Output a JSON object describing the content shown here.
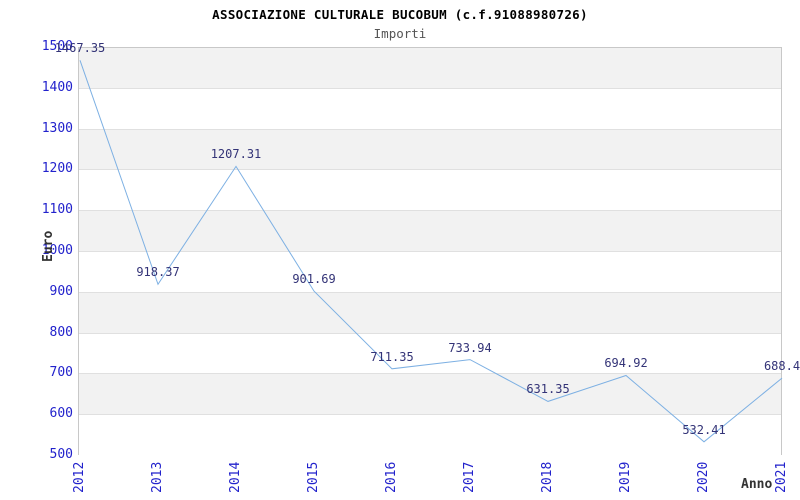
{
  "header": {
    "title": "ASSOCIAZIONE CULTURALE BUCOBUM (c.f.91088980726)",
    "subtitle": "Importi"
  },
  "chart_data": {
    "type": "line",
    "title": "ASSOCIAZIONE CULTURALE BUCOBUM (c.f.91088980726)",
    "subtitle": "Importi",
    "xlabel": "Anno",
    "ylabel": "Euro",
    "categories": [
      "2012",
      "2013",
      "2014",
      "2015",
      "2016",
      "2017",
      "2018",
      "2019",
      "2020",
      "2021"
    ],
    "series": [
      {
        "name": "Importi",
        "values": [
          1467.35,
          918.37,
          1207.31,
          901.69,
          711.35,
          733.94,
          631.35,
          694.92,
          532.41,
          688.4
        ]
      }
    ],
    "point_labels": [
      "1467.35",
      "918.37",
      "1207.31",
      "901.69",
      "711.35",
      "733.94",
      "631.35",
      "694.92",
      "532.41",
      "688.4"
    ],
    "yticks": [
      "500",
      "600",
      "700",
      "800",
      "900",
      "1000",
      "1100",
      "1200",
      "1300",
      "1400",
      "1500"
    ],
    "ylim": [
      500,
      1500
    ],
    "ytick_step": 100,
    "grid": true,
    "legend_position": "none",
    "band_fill_alternating": true,
    "colors": {
      "line": "#7db0e3",
      "tick_text": "#2222cc",
      "data_label": "#333377",
      "band": "#f2f2f2",
      "gridline": "#e0e0e0",
      "plot_border": "#c8c8c8",
      "title": "#000000",
      "subtitle": "#555555",
      "axis_title": "#333333",
      "background": "#ffffff"
    }
  }
}
